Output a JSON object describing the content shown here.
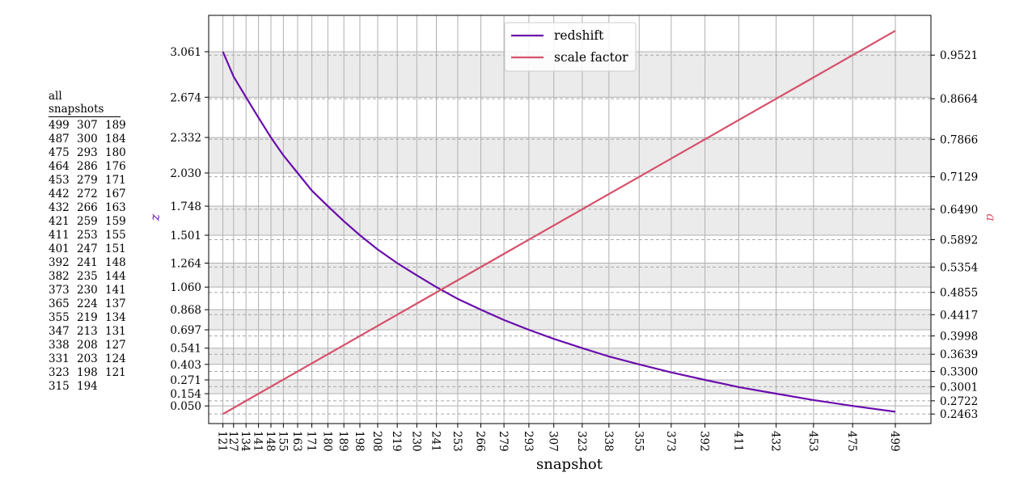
{
  "chart_data": {
    "type": "line",
    "xlabel": "snapshot",
    "ylabel_left": "z",
    "ylabel_right": "a",
    "grid": true,
    "legend_placement": "upper center",
    "xlim": [
      113,
      519
    ],
    "ylim_left": [
      -0.1,
      3.37
    ],
    "ylim_right": [
      0.2275,
      1.0303
    ],
    "x_ticks": [
      121,
      127,
      134,
      141,
      148,
      155,
      163,
      171,
      180,
      189,
      198,
      208,
      219,
      230,
      241,
      253,
      266,
      279,
      293,
      307,
      323,
      338,
      355,
      373,
      392,
      411,
      432,
      453,
      475,
      499
    ],
    "y_ticks_left": [
      3.061,
      2.674,
      2.332,
      2.03,
      1.748,
      1.501,
      1.264,
      1.06,
      0.868,
      0.697,
      0.541,
      0.403,
      0.271,
      0.154,
      0.05
    ],
    "y_ticks_right": [
      0.9521,
      0.8664,
      0.7866,
      0.7129,
      0.649,
      0.5892,
      0.5354,
      0.4855,
      0.4417,
      0.3998,
      0.3639,
      0.33,
      0.3001,
      0.2722,
      0.2463
    ],
    "shaded_bands_z": [
      [
        2.674,
        3.061
      ],
      [
        2.03,
        2.332
      ],
      [
        1.501,
        1.748
      ],
      [
        1.06,
        1.264
      ],
      [
        0.697,
        0.868
      ],
      [
        0.403,
        0.541
      ],
      [
        0.154,
        0.271
      ]
    ],
    "series": [
      {
        "name": "redshift",
        "axis": "left",
        "color": "#6a0dad",
        "x": [
          121,
          127,
          134,
          141,
          148,
          155,
          163,
          171,
          180,
          189,
          198,
          208,
          219,
          230,
          241,
          253,
          266,
          279,
          293,
          307,
          323,
          338,
          355,
          373,
          392,
          411,
          432,
          453,
          475,
          499
        ],
        "y": [
          3.061,
          2.85,
          2.674,
          2.5,
          2.332,
          2.18,
          2.03,
          1.88,
          1.748,
          1.62,
          1.501,
          1.38,
          1.264,
          1.16,
          1.06,
          0.96,
          0.868,
          0.78,
          0.697,
          0.62,
          0.541,
          0.47,
          0.403,
          0.335,
          0.271,
          0.21,
          0.154,
          0.1,
          0.05,
          0.0
        ]
      },
      {
        "name": "scale factor",
        "axis": "right",
        "color": "#d6506a",
        "x": [
          121,
          499
        ],
        "y": [
          0.2463,
          1.0
        ]
      }
    ]
  },
  "snapshot_table": {
    "title": "all snapshots",
    "rows": [
      [
        "499",
        "307",
        "189"
      ],
      [
        "487",
        "300",
        "184"
      ],
      [
        "475",
        "293",
        "180"
      ],
      [
        "464",
        "286",
        "176"
      ],
      [
        "453",
        "279",
        "171"
      ],
      [
        "442",
        "272",
        "167"
      ],
      [
        "432",
        "266",
        "163"
      ],
      [
        "421",
        "259",
        "159"
      ],
      [
        "411",
        "253",
        "155"
      ],
      [
        "401",
        "247",
        "151"
      ],
      [
        "392",
        "241",
        "148"
      ],
      [
        "382",
        "235",
        "144"
      ],
      [
        "373",
        "230",
        "141"
      ],
      [
        "365",
        "224",
        "137"
      ],
      [
        "355",
        "219",
        "134"
      ],
      [
        "347",
        "213",
        "131"
      ],
      [
        "338",
        "208",
        "127"
      ],
      [
        "331",
        "203",
        "124"
      ],
      [
        "323",
        "198",
        "121"
      ],
      [
        "315",
        "194",
        ""
      ]
    ]
  }
}
